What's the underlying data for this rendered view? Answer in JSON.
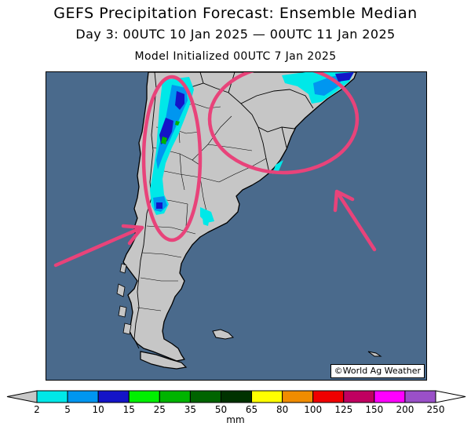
{
  "title": {
    "line1": "GEFS Precipitation Forecast: Ensemble Median",
    "line2": "Day 3: 00UTC 10 Jan 2025 — 00UTC 11 Jan 2025",
    "line3": "Model Initialized 00UTC 7 Jan 2025"
  },
  "map": {
    "ocean_color": "#4a6a8c",
    "land_color": "#c6c6c6",
    "copyright": "©World Ag Weather",
    "annotation_color": "#e8437a"
  },
  "colorbar": {
    "unit": "mm",
    "ticks": [
      "2",
      "5",
      "10",
      "15",
      "25",
      "35",
      "50",
      "65",
      "80",
      "100",
      "125",
      "150",
      "200",
      "250"
    ],
    "colors": [
      "#00e8e8",
      "#0096f0",
      "#1414c8",
      "#00f000",
      "#00b400",
      "#006400",
      "#003200",
      "#ffff00",
      "#f08c00",
      "#f00000",
      "#c00060",
      "#ff00ff",
      "#9a50c8"
    ],
    "low_extend_color": "#c8c8c8",
    "high_extend_color": "#ffffff"
  }
}
